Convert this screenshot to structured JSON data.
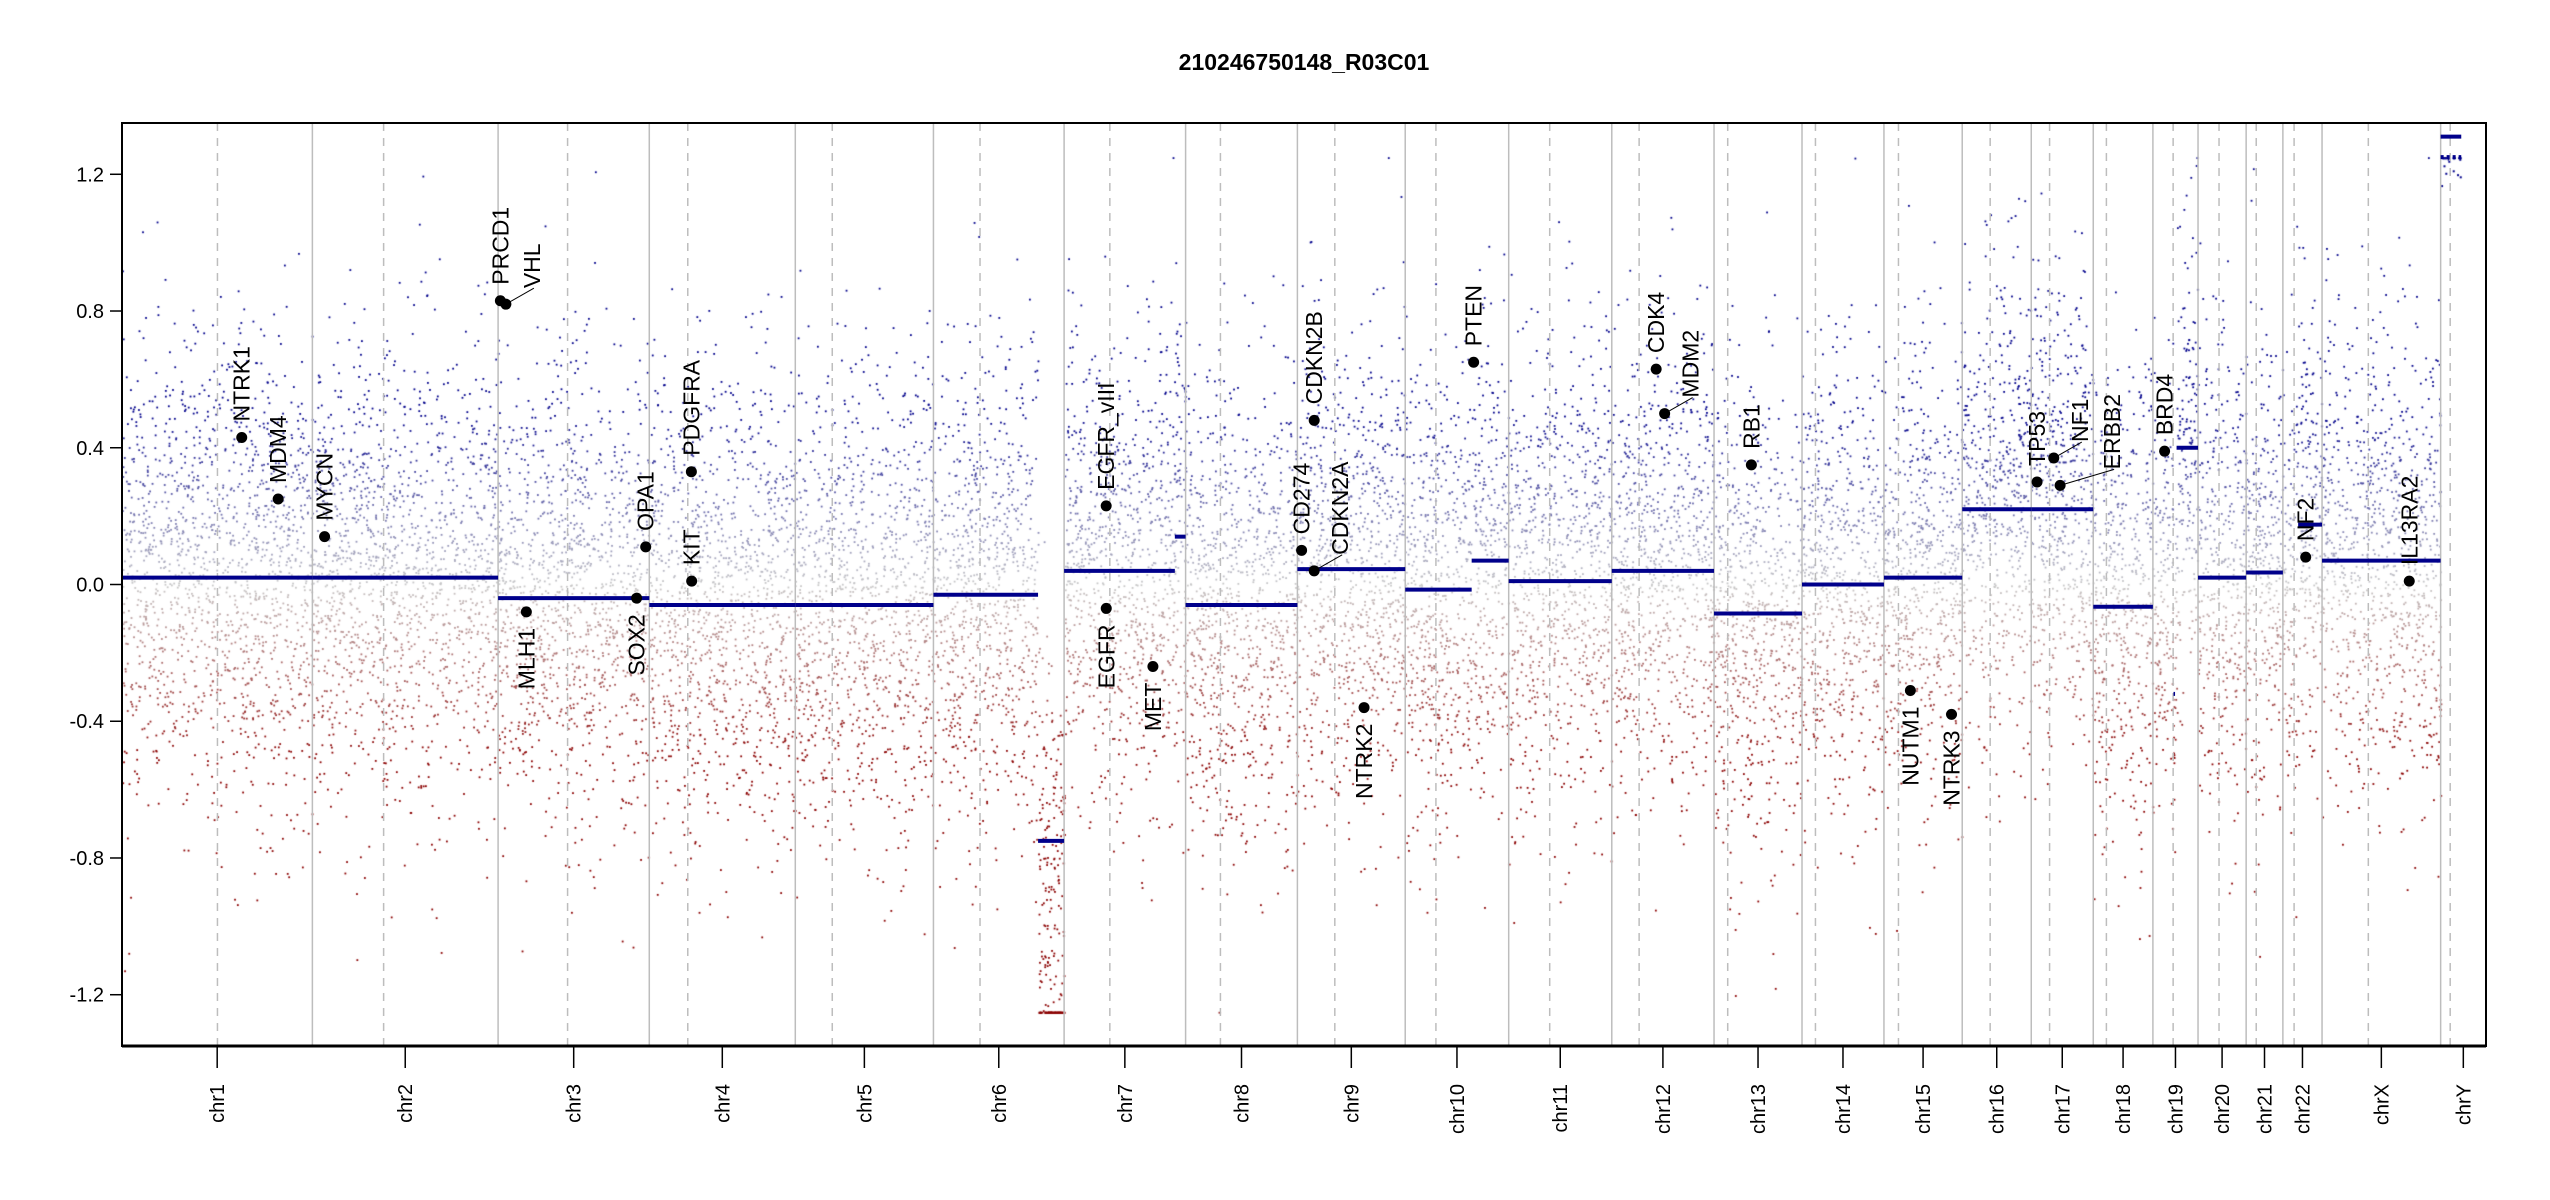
{
  "chart_data": {
    "type": "scatter",
    "title": "210246750148_R03C01",
    "xlabel": "",
    "ylabel": "",
    "ylim": [
      -1.35,
      1.35
    ],
    "y_ticks": [
      "-1.2",
      "-0.8",
      "-0.4",
      "0.0",
      "0.4",
      "0.8",
      "1.2"
    ],
    "y_tick_values": [
      -1.2,
      -0.8,
      -0.4,
      0.0,
      0.4,
      0.8,
      1.2
    ],
    "chromosomes": [
      {
        "name": "chr1",
        "length_mb": 249.3,
        "centromere_mb": 125
      },
      {
        "name": "chr2",
        "length_mb": 243.2,
        "centromere_mb": 93.3
      },
      {
        "name": "chr3",
        "length_mb": 198.0,
        "centromere_mb": 91
      },
      {
        "name": "chr4",
        "length_mb": 191.2,
        "centromere_mb": 50.4
      },
      {
        "name": "chr5",
        "length_mb": 180.9,
        "centromere_mb": 48.4
      },
      {
        "name": "chr6",
        "length_mb": 171.1,
        "centromere_mb": 61
      },
      {
        "name": "chr7",
        "length_mb": 159.1,
        "centromere_mb": 59.9
      },
      {
        "name": "chr8",
        "length_mb": 146.4,
        "centromere_mb": 45.6
      },
      {
        "name": "chr9",
        "length_mb": 141.2,
        "centromere_mb": 49
      },
      {
        "name": "chr10",
        "length_mb": 135.5,
        "centromere_mb": 40.2
      },
      {
        "name": "chr11",
        "length_mb": 135.0,
        "centromere_mb": 53.7
      },
      {
        "name": "chr12",
        "length_mb": 133.9,
        "centromere_mb": 35.8
      },
      {
        "name": "chr13",
        "length_mb": 115.2,
        "centromere_mb": 17.9
      },
      {
        "name": "chr14",
        "length_mb": 107.3,
        "centromere_mb": 17.6
      },
      {
        "name": "chr15",
        "length_mb": 102.5,
        "centromere_mb": 19
      },
      {
        "name": "chr16",
        "length_mb": 90.4,
        "centromere_mb": 36.6
      },
      {
        "name": "chr17",
        "length_mb": 81.2,
        "centromere_mb": 24
      },
      {
        "name": "chr18",
        "length_mb": 78.1,
        "centromere_mb": 17.2
      },
      {
        "name": "chr19",
        "length_mb": 59.1,
        "centromere_mb": 26.5
      },
      {
        "name": "chr20",
        "length_mb": 63.0,
        "centromere_mb": 27.5
      },
      {
        "name": "chr21",
        "length_mb": 48.1,
        "centromere_mb": 13.2
      },
      {
        "name": "chr22",
        "length_mb": 51.3,
        "centromere_mb": 14.7
      },
      {
        "name": "chrX",
        "length_mb": 155.3,
        "centromere_mb": 60.6
      },
      {
        "name": "chrY",
        "length_mb": 59.4,
        "centromere_mb": 12.5
      }
    ],
    "segments": [
      {
        "chr": "chr1",
        "start_mb": 0,
        "end_mb": 249.3,
        "value": 0.02
      },
      {
        "chr": "chr2",
        "start_mb": 0,
        "end_mb": 243.2,
        "value": 0.02
      },
      {
        "chr": "chr3",
        "start_mb": 0,
        "end_mb": 198.0,
        "value": -0.04
      },
      {
        "chr": "chr4",
        "start_mb": 0,
        "end_mb": 191.2,
        "value": -0.06
      },
      {
        "chr": "chr5",
        "start_mb": 0,
        "end_mb": 180.9,
        "value": -0.06
      },
      {
        "chr": "chr6",
        "start_mb": 0,
        "end_mb": 137,
        "value": -0.03
      },
      {
        "chr": "chr6",
        "start_mb": 137,
        "end_mb": 171.1,
        "value": -0.75
      },
      {
        "chr": "chr7",
        "start_mb": 0,
        "end_mb": 145,
        "value": 0.04
      },
      {
        "chr": "chr7",
        "start_mb": 145,
        "end_mb": 159.1,
        "value": 0.14
      },
      {
        "chr": "chr8",
        "start_mb": 0,
        "end_mb": 146.4,
        "value": -0.06
      },
      {
        "chr": "chr9",
        "start_mb": 0,
        "end_mb": 141.2,
        "value": 0.045
      },
      {
        "chr": "chr10",
        "start_mb": 0,
        "end_mb": 87,
        "value": -0.015
      },
      {
        "chr": "chr10",
        "start_mb": 87,
        "end_mb": 135.5,
        "value": 0.07
      },
      {
        "chr": "chr11",
        "start_mb": 0,
        "end_mb": 135.0,
        "value": 0.01
      },
      {
        "chr": "chr12",
        "start_mb": 0,
        "end_mb": 133.9,
        "value": 0.04
      },
      {
        "chr": "chr13",
        "start_mb": 0,
        "end_mb": 115.2,
        "value": -0.085
      },
      {
        "chr": "chr14",
        "start_mb": 0,
        "end_mb": 107.3,
        "value": 0.0
      },
      {
        "chr": "chr15",
        "start_mb": 0,
        "end_mb": 102.5,
        "value": 0.02
      },
      {
        "chr": "chr16",
        "start_mb": 0,
        "end_mb": 90.4,
        "value": 0.22
      },
      {
        "chr": "chr17",
        "start_mb": 0,
        "end_mb": 81.2,
        "value": 0.22
      },
      {
        "chr": "chr18",
        "start_mb": 0,
        "end_mb": 78.1,
        "value": -0.065
      },
      {
        "chr": "chr19",
        "start_mb": 27,
        "end_mb": 29,
        "value": -0.32
      },
      {
        "chr": "chr19",
        "start_mb": 31,
        "end_mb": 59.1,
        "value": 0.4
      },
      {
        "chr": "chr20",
        "start_mb": 0,
        "end_mb": 63.0,
        "value": 0.02
      },
      {
        "chr": "chr21",
        "start_mb": 0,
        "end_mb": 48.1,
        "value": 0.035
      },
      {
        "chr": "chr22",
        "start_mb": 20,
        "end_mb": 51.3,
        "value": 0.175
      },
      {
        "chr": "chrX",
        "start_mb": 0,
        "end_mb": 155.3,
        "value": 0.07
      },
      {
        "chr": "chrY",
        "start_mb": 0,
        "end_mb": 27,
        "value": 1.31
      },
      {
        "chr": "chrY",
        "start_mb": 0,
        "end_mb": 27,
        "value": 1.25
      }
    ],
    "genes": [
      {
        "name": "NTRK1",
        "chr": "chr1",
        "pos_mb": 156.8,
        "value": 0.43
      },
      {
        "name": "MDM4",
        "chr": "chr1",
        "pos_mb": 204.5,
        "value": 0.25
      },
      {
        "name": "MYCN",
        "chr": "chr2",
        "pos_mb": 16.0,
        "value": 0.14
      },
      {
        "name": "PRCD1",
        "chr": "chr3",
        "pos_mb": 3.0,
        "value": 0.83
      },
      {
        "name": "VHL",
        "chr": "chr3",
        "pos_mb": 10.2,
        "value": 0.82
      },
      {
        "name": "MLH1",
        "chr": "chr3",
        "pos_mb": 37.0,
        "value": -0.08
      },
      {
        "name": "SOX2",
        "chr": "chr3",
        "pos_mb": 181.4,
        "value": -0.04
      },
      {
        "name": "OPA1",
        "chr": "chr3",
        "pos_mb": 193.3,
        "value": 0.11
      },
      {
        "name": "KIT",
        "chr": "chr4",
        "pos_mb": 55.5,
        "value": 0.01
      },
      {
        "name": "PDGFRA",
        "chr": "chr4",
        "pos_mb": 55.1,
        "value": 0.33
      },
      {
        "name": "EGFR_vIII",
        "chr": "chr7",
        "pos_mb": 55.1,
        "value": 0.23
      },
      {
        "name": "EGFR",
        "chr": "chr7",
        "pos_mb": 55.2,
        "value": -0.07
      },
      {
        "name": "MET",
        "chr": "chr7",
        "pos_mb": 116.3,
        "value": -0.24
      },
      {
        "name": "CD274",
        "chr": "chr9",
        "pos_mb": 5.5,
        "value": 0.1
      },
      {
        "name": "CDKN2A",
        "chr": "chr9",
        "pos_mb": 21.97,
        "value": 0.04
      },
      {
        "name": "CDKN2B",
        "chr": "chr9",
        "pos_mb": 22.0,
        "value": 0.48
      },
      {
        "name": "NTRK2",
        "chr": "chr9",
        "pos_mb": 87.3,
        "value": -0.36
      },
      {
        "name": "PTEN",
        "chr": "chr10",
        "pos_mb": 89.6,
        "value": 0.65
      },
      {
        "name": "CDK4",
        "chr": "chr12",
        "pos_mb": 58.1,
        "value": 0.63
      },
      {
        "name": "MDM2",
        "chr": "chr12",
        "pos_mb": 69.2,
        "value": 0.5
      },
      {
        "name": "RB1",
        "chr": "chr13",
        "pos_mb": 48.9,
        "value": 0.35
      },
      {
        "name": "NUTM1",
        "chr": "chr15",
        "pos_mb": 34.6,
        "value": -0.31
      },
      {
        "name": "NTRK3",
        "chr": "chr15",
        "pos_mb": 88.5,
        "value": -0.38
      },
      {
        "name": "TP53",
        "chr": "chr17",
        "pos_mb": 7.6,
        "value": 0.3
      },
      {
        "name": "NF1",
        "chr": "chr17",
        "pos_mb": 29.5,
        "value": 0.37
      },
      {
        "name": "ERBB2",
        "chr": "chr17",
        "pos_mb": 37.8,
        "value": 0.29
      },
      {
        "name": "BRD4",
        "chr": "chr19",
        "pos_mb": 15.3,
        "value": 0.39
      },
      {
        "name": "NF2",
        "chr": "chr22",
        "pos_mb": 29.9,
        "value": 0.08
      },
      {
        "name": "IL13RA2",
        "chr": "chrX",
        "pos_mb": 114.2,
        "value": 0.01
      }
    ],
    "colors": {
      "gain": "#00008b",
      "loss": "#8b0000",
      "neutral": "#c8c8c8",
      "segment": "#00008b",
      "gene": "#000000"
    },
    "grid": false,
    "legend": "none"
  }
}
